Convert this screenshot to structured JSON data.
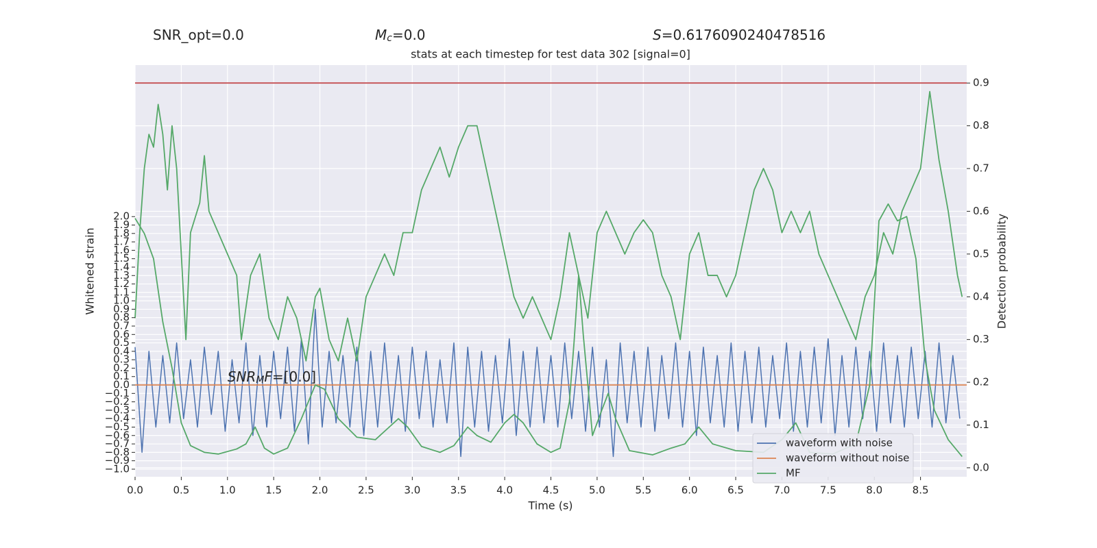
{
  "chart_data": {
    "type": "line",
    "title": "stats at each timestep for test data 302 [signal=0]",
    "headers": [
      {
        "text": "SNR_opt=0.0"
      },
      {
        "symbol": "M",
        "sub": "c",
        "text": "=0.0"
      },
      {
        "symbol": "S",
        "text": "=0.6176090240478516"
      }
    ],
    "annotation": {
      "symbol": "SNR",
      "sub": "M",
      "symbol2": "F",
      "text": "=[0.0]"
    },
    "xlabel": "Time (s)",
    "ylabel": "Whitened strain",
    "y2label": "Detection probability",
    "xlim": [
      0,
      9.0
    ],
    "ylim": [
      -1.09,
      3.8
    ],
    "y2lim": [
      -0.021,
      0.942
    ],
    "xticks": [
      {
        "value": 0,
        "label": "0.0"
      },
      0.5,
      {
        "value": 1,
        "label": "1.0"
      },
      1.5,
      {
        "value": 2,
        "label": "2.0"
      },
      2.5,
      {
        "value": 3,
        "label": "3.0"
      },
      3.5,
      {
        "value": 4,
        "label": "4.0"
      },
      4.5,
      {
        "value": 5,
        "label": "5.0"
      },
      5.5,
      {
        "value": 6,
        "label": "6.0"
      },
      6.5,
      {
        "value": 7,
        "label": "7.0"
      },
      7.5,
      {
        "value": 8,
        "label": "8.0"
      },
      8.5
    ],
    "yticks": [
      {
        "value": -1,
        "label": "−1.0"
      },
      {
        "value": -0.9,
        "label": "−0.9"
      },
      {
        "value": -0.8,
        "label": "−0.8"
      },
      {
        "value": -0.7,
        "label": "−0.7"
      },
      {
        "value": -0.6,
        "label": "−0.6"
      },
      {
        "value": -0.5,
        "label": "−0.5"
      },
      {
        "value": -0.4,
        "label": "−0.4"
      },
      {
        "value": -0.3,
        "label": "−0.3"
      },
      {
        "value": -0.2,
        "label": "−0.2"
      },
      {
        "value": -0.1,
        "label": "−0.1"
      },
      {
        "value": 0,
        "label": "0.0"
      },
      0.1,
      0.2,
      0.3,
      0.4,
      0.5,
      0.6,
      0.7,
      0.8,
      0.9,
      {
        "value": 1,
        "label": "1.0"
      },
      1.1,
      1.2,
      1.3,
      1.4,
      1.5,
      1.6,
      1.7,
      1.8,
      1.9,
      {
        "value": 2,
        "label": "2.0"
      }
    ],
    "y2ticks": [
      {
        "value": 0,
        "label": "0.0"
      },
      0.1,
      0.2,
      0.3,
      0.4,
      0.5,
      0.6,
      0.7,
      0.8,
      0.9
    ],
    "grid": true,
    "legend": "lower right",
    "hlines": [
      {
        "value": 0.9,
        "color": "#c44e52",
        "axis": "y2"
      }
    ],
    "series": [
      {
        "name": "waveform with noise",
        "color": "#4c72b0",
        "x": [
          0,
          0.075,
          0.15,
          0.225,
          0.3,
          0.375,
          0.45,
          0.525,
          0.6,
          0.675,
          0.75,
          0.825,
          0.9,
          0.975,
          1.05,
          1.125,
          1.2,
          1.275,
          1.35,
          1.425,
          1.5,
          1.575,
          1.65,
          1.725,
          1.8,
          1.875,
          1.95,
          2.025,
          2.1,
          2.175,
          2.25,
          2.325,
          2.4,
          2.475,
          2.55,
          2.625,
          2.7,
          2.775,
          2.85,
          2.925,
          3,
          3.075,
          3.15,
          3.225,
          3.3,
          3.375,
          3.45,
          3.525,
          3.6,
          3.675,
          3.75,
          3.825,
          3.9,
          3.975,
          4.05,
          4.125,
          4.2,
          4.275,
          4.35,
          4.425,
          4.5,
          4.575,
          4.65,
          4.725,
          4.8,
          4.875,
          4.95,
          5.025,
          5.1,
          5.175,
          5.25,
          5.325,
          5.4,
          5.475,
          5.55,
          5.625,
          5.7,
          5.775,
          5.85,
          5.925,
          6,
          6.075,
          6.15,
          6.225,
          6.3,
          6.375,
          6.45,
          6.525,
          6.6,
          6.675,
          6.75,
          6.825,
          6.9,
          6.975,
          7.05,
          7.125,
          7.2,
          7.275,
          7.35,
          7.425,
          7.5,
          7.575,
          7.65,
          7.725,
          7.8,
          7.875,
          7.95,
          8.025,
          8.1,
          8.175,
          8.25,
          8.325,
          8.4,
          8.475,
          8.55,
          8.625,
          8.7,
          8.775,
          8.85,
          8.925
        ],
        "values": [
          0.45,
          -0.8,
          0.4,
          -0.5,
          0.35,
          -0.45,
          0.5,
          -0.4,
          0.3,
          -0.5,
          0.45,
          -0.35,
          0.4,
          -0.55,
          0.3,
          -0.45,
          0.5,
          -0.6,
          0.35,
          -0.5,
          0.4,
          -0.4,
          0.45,
          -0.55,
          0.55,
          -0.7,
          0.9,
          -0.5,
          0.4,
          -0.45,
          0.35,
          -0.5,
          0.45,
          -0.6,
          0.4,
          -0.5,
          0.5,
          -0.45,
          0.35,
          -0.55,
          0.45,
          -0.4,
          0.4,
          -0.5,
          0.3,
          -0.45,
          0.5,
          -0.85,
          0.45,
          -0.5,
          0.4,
          -0.55,
          0.35,
          -0.45,
          0.55,
          -0.6,
          0.4,
          -0.5,
          0.45,
          -0.45,
          0.35,
          -0.5,
          0.5,
          -0.4,
          0.4,
          -0.55,
          0.45,
          -0.5,
          0.3,
          -0.85,
          0.5,
          -0.45,
          0.4,
          -0.5,
          0.45,
          -0.55,
          0.35,
          -0.4,
          0.5,
          -0.5,
          0.4,
          -0.6,
          0.45,
          -0.45,
          0.35,
          -0.5,
          0.5,
          -0.55,
          0.4,
          -0.45,
          0.45,
          -0.5,
          0.35,
          -0.4,
          0.5,
          -0.55,
          0.4,
          -0.5,
          0.45,
          -0.45,
          0.55,
          -0.6,
          0.35,
          -0.5,
          0.45,
          -0.4,
          0.4,
          -0.55,
          0.5,
          -0.45,
          0.35,
          -0.5,
          0.45,
          -0.4,
          0.4,
          -0.5,
          0.5,
          -0.45,
          0.35,
          -0.4
        ]
      },
      {
        "name": "waveform without noise",
        "color": "#dd8452",
        "x": [
          0,
          9.0
        ],
        "values": [
          0,
          0
        ]
      },
      {
        "name": "MF",
        "color": "#55a868",
        "x": [
          0,
          0.1,
          0.2,
          0.3,
          0.4,
          0.5,
          0.6,
          0.75,
          0.9,
          1.1,
          1.2,
          1.3,
          1.4,
          1.5,
          1.65,
          1.8,
          1.95,
          2.05,
          2.2,
          2.4,
          2.6,
          2.75,
          2.85,
          2.95,
          3.1,
          3.3,
          3.45,
          3.6,
          3.7,
          3.85,
          4.0,
          4.1,
          4.2,
          4.35,
          4.5,
          4.6,
          4.7,
          4.75,
          4.8,
          4.85,
          4.95,
          5.05,
          5.12,
          5.2,
          5.35,
          5.6,
          5.8,
          5.95,
          6.1,
          6.25,
          6.5,
          6.8,
          7.0,
          7.15,
          7.3,
          7.55,
          7.8,
          7.95,
          8.05,
          8.15,
          8.25,
          8.35,
          8.45,
          8.55,
          8.65,
          8.8,
          8.95
        ],
        "values": [
          1.98,
          1.8,
          1.5,
          0.75,
          0.2,
          -0.45,
          -0.72,
          -0.8,
          -0.82,
          -0.76,
          -0.7,
          -0.5,
          -0.75,
          -0.82,
          -0.75,
          -0.4,
          0.0,
          -0.05,
          -0.4,
          -0.62,
          -0.65,
          -0.5,
          -0.4,
          -0.5,
          -0.73,
          -0.8,
          -0.72,
          -0.5,
          -0.6,
          -0.68,
          -0.45,
          -0.35,
          -0.45,
          -0.7,
          -0.8,
          -0.75,
          -0.2,
          0.5,
          1.3,
          0.6,
          -0.6,
          -0.3,
          -0.1,
          -0.4,
          -0.78,
          -0.83,
          -0.75,
          -0.7,
          -0.5,
          -0.7,
          -0.78,
          -0.8,
          -0.65,
          -0.45,
          -0.8,
          -0.82,
          -0.7,
          0.0,
          1.95,
          2.15,
          1.95,
          2.0,
          1.5,
          0.3,
          -0.3,
          -0.65,
          -0.85
        ]
      },
      {
        "color": "#55a868",
        "axis": "y2",
        "x": [
          0,
          0.05,
          0.1,
          0.15,
          0.2,
          0.25,
          0.3,
          0.35,
          0.4,
          0.45,
          0.5,
          0.55,
          0.6,
          0.7,
          0.75,
          0.8,
          0.9,
          1.0,
          1.1,
          1.15,
          1.25,
          1.35,
          1.45,
          1.55,
          1.65,
          1.75,
          1.85,
          1.95,
          2.0,
          2.1,
          2.2,
          2.3,
          2.4,
          2.5,
          2.6,
          2.7,
          2.8,
          2.9,
          3.0,
          3.1,
          3.2,
          3.3,
          3.4,
          3.5,
          3.6,
          3.7,
          3.8,
          3.9,
          4.0,
          4.1,
          4.2,
          4.3,
          4.4,
          4.5,
          4.6,
          4.7,
          4.8,
          4.9,
          5.0,
          5.1,
          5.2,
          5.3,
          5.4,
          5.5,
          5.6,
          5.7,
          5.8,
          5.9,
          6.0,
          6.1,
          6.2,
          6.3,
          6.4,
          6.5,
          6.6,
          6.7,
          6.8,
          6.9,
          7.0,
          7.1,
          7.2,
          7.3,
          7.4,
          7.5,
          7.6,
          7.7,
          7.8,
          7.9,
          8.0,
          8.1,
          8.2,
          8.3,
          8.4,
          8.5,
          8.6,
          8.7,
          8.8,
          8.9,
          8.95
        ],
        "values": [
          0.35,
          0.55,
          0.7,
          0.78,
          0.75,
          0.85,
          0.78,
          0.65,
          0.8,
          0.7,
          0.5,
          0.3,
          0.55,
          0.62,
          0.73,
          0.6,
          0.55,
          0.5,
          0.45,
          0.3,
          0.45,
          0.5,
          0.35,
          0.3,
          0.4,
          0.35,
          0.25,
          0.4,
          0.42,
          0.3,
          0.25,
          0.35,
          0.25,
          0.4,
          0.45,
          0.5,
          0.45,
          0.55,
          0.55,
          0.65,
          0.7,
          0.75,
          0.68,
          0.75,
          0.8,
          0.8,
          0.7,
          0.6,
          0.5,
          0.4,
          0.35,
          0.4,
          0.35,
          0.3,
          0.4,
          0.55,
          0.45,
          0.35,
          0.55,
          0.6,
          0.55,
          0.5,
          0.55,
          0.58,
          0.55,
          0.45,
          0.4,
          0.3,
          0.5,
          0.55,
          0.45,
          0.45,
          0.4,
          0.45,
          0.55,
          0.65,
          0.7,
          0.65,
          0.55,
          0.6,
          0.55,
          0.6,
          0.5,
          0.45,
          0.4,
          0.35,
          0.3,
          0.4,
          0.45,
          0.55,
          0.5,
          0.6,
          0.65,
          0.7,
          0.88,
          0.72,
          0.6,
          0.45,
          0.4
        ]
      }
    ]
  }
}
